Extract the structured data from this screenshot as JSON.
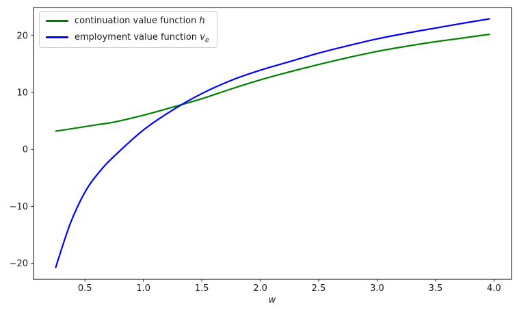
{
  "figure": {
    "background": "#ffffff",
    "text_color": "#1a1a1a",
    "spine_color": "#000000"
  },
  "legend": {
    "position": "upper left",
    "items": [
      {
        "label_text": "continuation value function",
        "math": "h",
        "math_sub": "",
        "series_id": "h"
      },
      {
        "label_text": "employment value function",
        "math": "v",
        "math_sub": "e",
        "series_id": "v_e"
      }
    ]
  },
  "chart_data": {
    "type": "line",
    "title": "",
    "xlabel": "w",
    "ylabel": "",
    "grid": false,
    "legend_position": "upper left",
    "xlim": [
      0.06,
      4.15
    ],
    "ylim": [
      -22.8,
      24.9
    ],
    "xticks": {
      "values": [
        0.5,
        1.0,
        1.5,
        2.0,
        2.5,
        3.0,
        3.5,
        4.0
      ],
      "labels": [
        "0.5",
        "1.0",
        "1.5",
        "2.0",
        "2.5",
        "3.0",
        "3.5",
        "4.0"
      ]
    },
    "yticks": {
      "values": [
        -20,
        -10,
        0,
        10,
        20
      ],
      "labels": [
        "−20",
        "−10",
        "0",
        "10",
        "20"
      ]
    },
    "x": [
      0.25,
      0.375,
      0.5,
      0.625,
      0.75,
      1.0,
      1.25,
      1.5,
      1.75,
      2.0,
      2.25,
      2.5,
      2.75,
      3.0,
      3.25,
      3.5,
      3.75,
      3.96
    ],
    "series": [
      {
        "id": "h",
        "name": "continuation value function h",
        "color": "#008000",
        "line_width": 2.2,
        "values": [
          3.2,
          3.6,
          4.0,
          4.4,
          4.8,
          6.0,
          7.4,
          8.9,
          10.6,
          12.2,
          13.6,
          14.9,
          16.1,
          17.2,
          18.1,
          18.9,
          19.6,
          20.2
        ]
      },
      {
        "id": "v_e",
        "name": "employment value function v_e",
        "color": "#0000ff",
        "line_width": 2.2,
        "values": [
          -20.7,
          -13.0,
          -7.5,
          -3.9,
          -1.2,
          3.4,
          6.9,
          9.8,
          12.1,
          13.9,
          15.4,
          16.9,
          18.2,
          19.4,
          20.4,
          21.3,
          22.2,
          22.9
        ]
      }
    ],
    "annotations": {
      "curves_cross_at": {
        "w": 1.38,
        "value": 8.2
      }
    }
  }
}
